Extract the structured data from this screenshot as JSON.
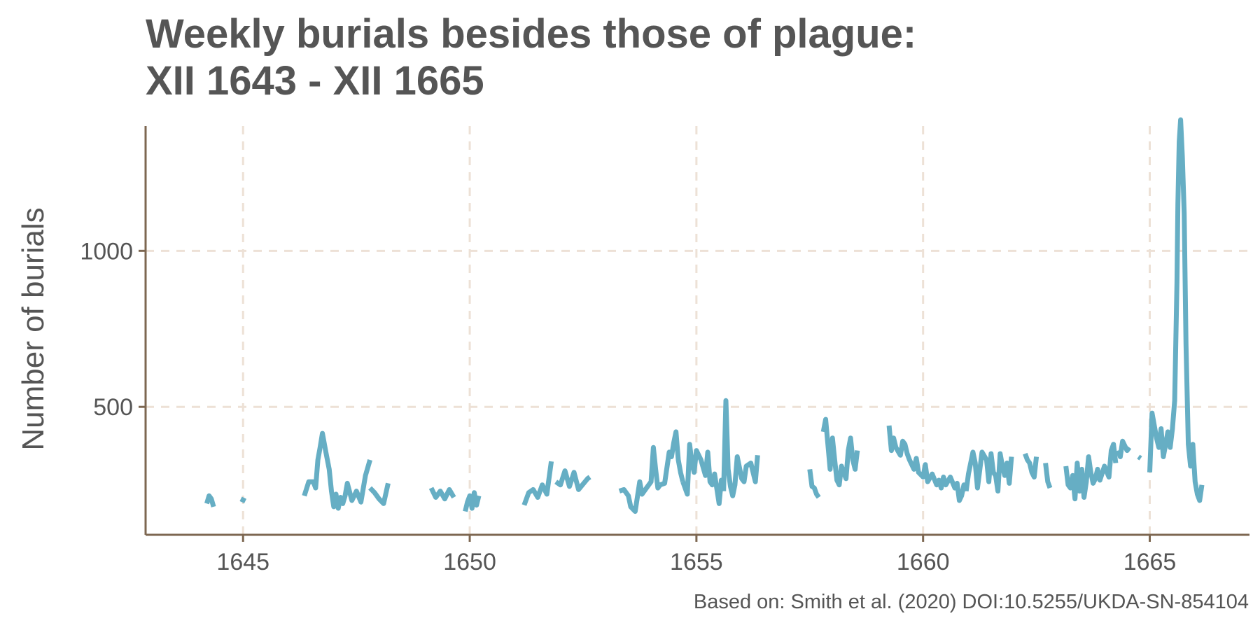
{
  "chart_data": {
    "type": "line",
    "title_lines": [
      "Weekly burials besides those of plague:",
      "XII 1643 - XII 1665"
    ],
    "xlabel": "",
    "ylabel": "Number of burials",
    "caption": "Based on: Smith et al. (2020) DOI:10.5255/UKDA-SN-854104",
    "xlim": [
      1642.85,
      1667.2
    ],
    "ylim": [
      90,
      1400
    ],
    "x_ticks": [
      1645,
      1650,
      1655,
      1660,
      1665
    ],
    "y_ticks": [
      500,
      1000
    ],
    "grid": true,
    "colors": {
      "line": "#66AEC4",
      "axis": "#7D6751",
      "grid": "#EDE1D6",
      "text": "#555555"
    },
    "segments": [
      {
        "x": [
          1644.2,
          1644.25,
          1644.3,
          1644.35
        ],
        "y": [
          190,
          215,
          205,
          180
        ]
      },
      {
        "x": [
          1644.95,
          1645.05
        ],
        "y": [
          205,
          198
        ]
      },
      {
        "x": [
          1646.35,
          1646.45,
          1646.55,
          1646.6,
          1646.65,
          1646.7,
          1646.75,
          1646.82,
          1646.9,
          1646.95,
          1647.0,
          1647.05,
          1647.1,
          1647.15,
          1647.2,
          1647.25,
          1647.3,
          1647.4,
          1647.5,
          1647.6,
          1647.7,
          1647.8
        ],
        "y": [
          215,
          260,
          260,
          240,
          330,
          370,
          415,
          360,
          300,
          230,
          180,
          220,
          175,
          210,
          190,
          215,
          255,
          200,
          230,
          195,
          280,
          330
        ]
      },
      {
        "x": [
          1647.8,
          1647.9,
          1648.0,
          1648.1,
          1648.2
        ],
        "y": [
          240,
          225,
          205,
          190,
          255
        ]
      },
      {
        "x": [
          1649.15,
          1649.25,
          1649.35,
          1649.45,
          1649.55,
          1649.65
        ],
        "y": [
          240,
          210,
          230,
          205,
          235,
          210
        ]
      },
      {
        "x": [
          1649.9,
          1649.95,
          1650.0,
          1650.05,
          1650.1,
          1650.15,
          1650.2
        ],
        "y": [
          165,
          195,
          215,
          175,
          225,
          185,
          215
        ]
      },
      {
        "x": [
          1651.2,
          1651.3,
          1651.4,
          1651.5,
          1651.6,
          1651.7,
          1651.8
        ],
        "y": [
          185,
          225,
          235,
          210,
          250,
          220,
          325
        ]
      },
      {
        "x": [
          1651.9,
          1652.0,
          1652.1,
          1652.2,
          1652.3,
          1652.4,
          1652.6,
          1652.65
        ],
        "y": [
          260,
          250,
          295,
          245,
          290,
          235,
          270,
          275
        ]
      },
      {
        "x": [
          1653.3,
          1653.4,
          1653.5,
          1653.55,
          1653.65,
          1653.75,
          1653.8,
          1653.9,
          1654.0,
          1654.05,
          1654.1,
          1654.15,
          1654.2
        ],
        "y": [
          230,
          235,
          215,
          180,
          165,
          260,
          220,
          240,
          260,
          370,
          300,
          240,
          250
        ]
      },
      {
        "x": [
          1654.2,
          1654.3,
          1654.4,
          1654.45,
          1654.5,
          1654.55,
          1654.6,
          1654.65,
          1654.7
        ],
        "y": [
          250,
          255,
          355,
          340,
          385,
          420,
          330,
          290,
          260
        ]
      },
      {
        "x": [
          1654.7,
          1654.8,
          1654.85,
          1654.9,
          1654.95,
          1655.0,
          1655.1,
          1655.2,
          1655.25,
          1655.3,
          1655.35,
          1655.4,
          1655.5,
          1655.55,
          1655.6
        ],
        "y": [
          260,
          220,
          380,
          320,
          290,
          360,
          330,
          280,
          355,
          260,
          250,
          285,
          190,
          265,
          230
        ]
      },
      {
        "x": [
          1655.6,
          1655.65,
          1655.7,
          1655.75,
          1655.8,
          1655.85,
          1655.9,
          1656.0,
          1656.05,
          1656.1,
          1656.2,
          1656.3,
          1656.35
        ],
        "y": [
          230,
          520,
          300,
          245,
          215,
          250,
          340,
          270,
          260,
          310,
          320,
          260,
          345
        ]
      },
      {
        "x": [
          1657.5,
          1657.55,
          1657.6,
          1657.65,
          1657.7
        ],
        "y": [
          300,
          245,
          240,
          220,
          210
        ]
      },
      {
        "x": [
          1657.8,
          1657.85,
          1657.9,
          1657.95,
          1658.0,
          1658.05,
          1658.1,
          1658.15,
          1658.2,
          1658.3,
          1658.35,
          1658.4,
          1658.45,
          1658.5,
          1658.55
        ],
        "y": [
          420,
          460,
          380,
          300,
          400,
          330,
          265,
          250,
          310,
          270,
          360,
          400,
          330,
          300,
          360
        ]
      },
      {
        "x": [
          1659.25,
          1659.3,
          1659.35,
          1659.4,
          1659.5,
          1659.55,
          1659.6,
          1659.65,
          1659.7,
          1659.8,
          1659.85,
          1659.9,
          1660.0,
          1660.05,
          1660.1,
          1660.2,
          1660.3,
          1660.35,
          1660.4,
          1660.45,
          1660.5,
          1660.6,
          1660.7,
          1660.75,
          1660.8,
          1660.85,
          1660.9,
          1660.95
        ],
        "y": [
          440,
          360,
          400,
          370,
          345,
          390,
          380,
          350,
          330,
          300,
          335,
          290,
          275,
          315,
          260,
          285,
          250,
          265,
          240,
          275,
          250,
          275,
          240,
          255,
          200,
          215,
          250,
          230
        ]
      },
      {
        "x": [
          1660.95,
          1661.0,
          1661.1,
          1661.15,
          1661.2,
          1661.3,
          1661.4,
          1661.45,
          1661.5,
          1661.55,
          1661.6,
          1661.65,
          1661.7,
          1661.75,
          1661.8,
          1661.85,
          1661.9,
          1661.95
        ],
        "y": [
          230,
          285,
          355,
          320,
          240,
          355,
          330,
          260,
          350,
          290,
          280,
          230,
          350,
          310,
          280,
          320,
          255,
          340
        ]
      },
      {
        "x": [
          1662.25,
          1662.3,
          1662.35,
          1662.4,
          1662.45,
          1662.5
        ],
        "y": [
          350,
          330,
          320,
          290,
          275,
          340
        ]
      },
      {
        "x": [
          1662.7,
          1662.75,
          1662.8
        ],
        "y": [
          320,
          260,
          240
        ]
      },
      {
        "x": [
          1663.15,
          1663.2,
          1663.25,
          1663.3,
          1663.35,
          1663.4,
          1663.45,
          1663.5,
          1663.55,
          1663.6,
          1663.65,
          1663.7,
          1663.75,
          1663.8,
          1663.85,
          1663.9,
          1664.0,
          1664.1,
          1664.15,
          1664.2,
          1664.25
        ],
        "y": [
          310,
          250,
          240,
          280,
          205,
          320,
          230,
          300,
          210,
          260,
          340,
          290,
          255,
          270,
          300,
          265,
          310,
          275,
          360,
          380,
          320
        ]
      },
      {
        "x": [
          1664.3,
          1664.35,
          1664.4,
          1664.5,
          1664.55
        ],
        "y": [
          360,
          340,
          390,
          360,
          370
        ]
      },
      {
        "x": [
          1664.75,
          1664.8
        ],
        "y": [
          340,
          335
        ]
      },
      {
        "x": [
          1665.0,
          1665.05,
          1665.1,
          1665.15,
          1665.2,
          1665.25,
          1665.3,
          1665.35,
          1665.4,
          1665.45,
          1665.5,
          1665.55,
          1665.6,
          1665.62,
          1665.65,
          1665.68,
          1665.72,
          1665.76,
          1665.8,
          1665.85,
          1665.9,
          1665.95,
          1666.0,
          1666.05,
          1666.1,
          1666.15
        ],
        "y": [
          290,
          480,
          440,
          400,
          370,
          430,
          340,
          380,
          420,
          370,
          430,
          520,
          900,
          1150,
          1350,
          1420,
          1300,
          1120,
          700,
          380,
          310,
          380,
          260,
          220,
          200,
          250
        ]
      }
    ]
  }
}
